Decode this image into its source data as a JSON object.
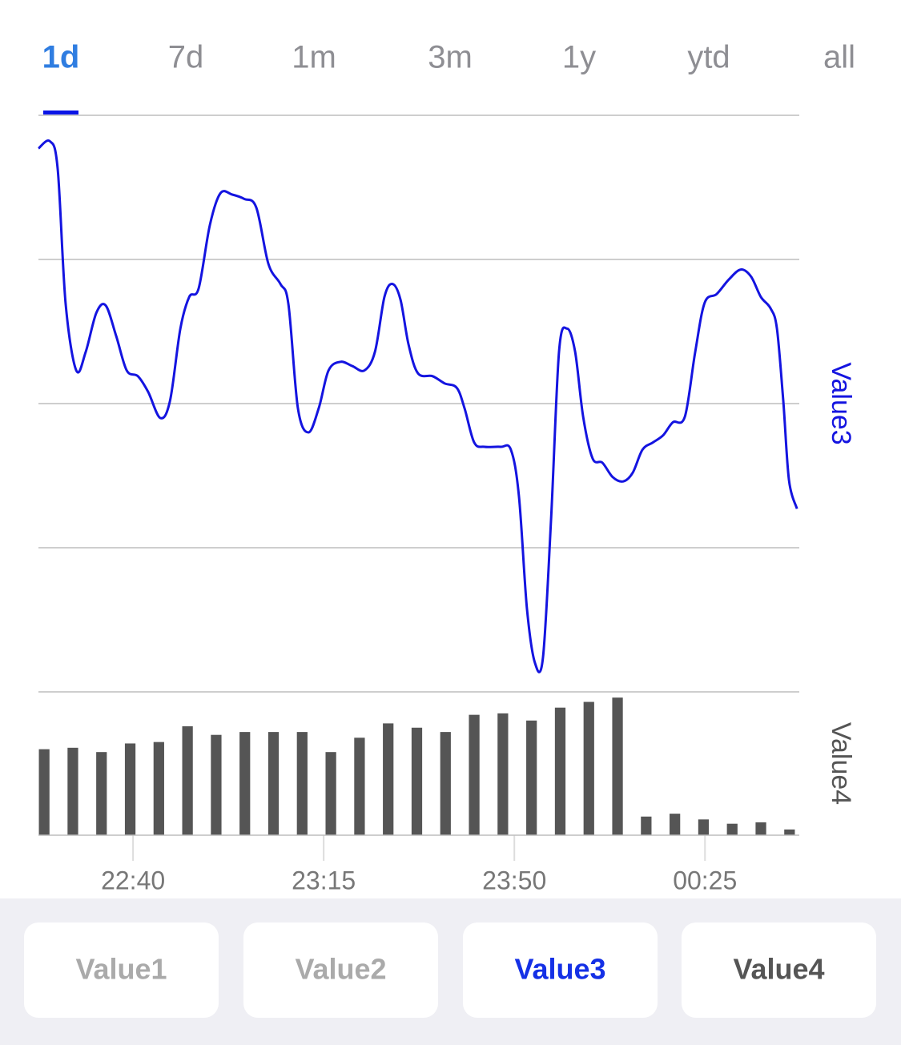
{
  "tabs": {
    "items": [
      "1d",
      "7d",
      "1m",
      "3m",
      "1y",
      "ytd",
      "all"
    ],
    "selected": 0,
    "color": "#2f7de1",
    "underline_color": "#0a14e6"
  },
  "chart_data": [
    {
      "type": "line",
      "ylabel": "Value3",
      "xlim": [
        -0.2,
        26.34
      ],
      "ylim": [
        0,
        4
      ],
      "yticks": [
        0,
        1,
        2,
        3,
        4
      ],
      "grid": true,
      "series": [
        {
          "name": "Value3",
          "color": "#1414e0",
          "x": [
            -0.2,
            0.2,
            0.47,
            0.75,
            1.12,
            1.45,
            1.82,
            2.15,
            2.51,
            2.88,
            3.27,
            3.63,
            4.05,
            4.39,
            4.75,
            5.06,
            5.39,
            5.78,
            6.15,
            6.56,
            6.98,
            7.4,
            7.82,
            8.24,
            8.52,
            8.85,
            9.22,
            9.58,
            9.92,
            10.34,
            10.75,
            11.17,
            11.54,
            11.87,
            12.15,
            12.43,
            12.71,
            13.04,
            13.55,
            13.97,
            14.39,
            14.66,
            15.0,
            15.36,
            15.92,
            16.28,
            16.56,
            16.84,
            17.12,
            17.4,
            17.68,
            17.96,
            18.24,
            18.52,
            18.8,
            19.13,
            19.47,
            19.83,
            20.2,
            20.53,
            20.87,
            21.23,
            21.59,
            21.93,
            22.35,
            22.71,
            23.04,
            23.46,
            23.88,
            24.3,
            24.66,
            25.0,
            25.34,
            25.56,
            25.78,
            25.98,
            26.26
          ],
          "values": [
            3.77,
            3.82,
            3.63,
            2.69,
            2.23,
            2.36,
            2.63,
            2.68,
            2.47,
            2.23,
            2.19,
            2.08,
            1.9,
            2.02,
            2.52,
            2.74,
            2.8,
            3.24,
            3.46,
            3.45,
            3.42,
            3.36,
            2.97,
            2.83,
            2.69,
            1.97,
            1.8,
            1.97,
            2.23,
            2.29,
            2.26,
            2.23,
            2.36,
            2.74,
            2.83,
            2.72,
            2.41,
            2.21,
            2.19,
            2.14,
            2.11,
            1.97,
            1.73,
            1.7,
            1.7,
            1.68,
            1.36,
            0.58,
            0.2,
            0.24,
            1.19,
            2.36,
            2.52,
            2.36,
            1.91,
            1.62,
            1.59,
            1.49,
            1.46,
            1.52,
            1.68,
            1.73,
            1.78,
            1.87,
            1.91,
            2.36,
            2.7,
            2.76,
            2.86,
            2.93,
            2.88,
            2.74,
            2.66,
            2.52,
            2.02,
            1.47,
            1.27
          ]
        }
      ]
    },
    {
      "type": "bar",
      "ylabel": "Value4",
      "xlim": [
        -0.2,
        26.34
      ],
      "ylim": [
        0,
        1
      ],
      "xticks": [
        {
          "value": 3.1,
          "label": "22:40"
        },
        {
          "value": 9.75,
          "label": "23:15"
        },
        {
          "value": 16.4,
          "label": "23:50"
        },
        {
          "value": 23.05,
          "label": "00:25"
        }
      ],
      "series": [
        {
          "name": "Value4",
          "color": "#555555",
          "x": [
            0,
            1,
            2,
            3,
            4,
            5,
            6,
            7,
            8,
            9,
            10,
            11,
            12,
            13,
            14,
            15,
            16,
            17,
            18,
            19,
            20,
            21,
            22,
            23,
            24,
            25,
            26
          ],
          "values": [
            0.6,
            0.61,
            0.58,
            0.64,
            0.65,
            0.76,
            0.7,
            0.72,
            0.72,
            0.72,
            0.58,
            0.68,
            0.78,
            0.75,
            0.72,
            0.84,
            0.85,
            0.8,
            0.89,
            0.93,
            0.96,
            0.13,
            0.15,
            0.11,
            0.08,
            0.09,
            0.04
          ]
        }
      ]
    }
  ],
  "buttons": [
    {
      "label": "Value1",
      "color": "#aaaaaa"
    },
    {
      "label": "Value2",
      "color": "#aaaaaa"
    },
    {
      "label": "Value3",
      "color": "#1430e6"
    },
    {
      "label": "Value4",
      "color": "#555555"
    }
  ]
}
